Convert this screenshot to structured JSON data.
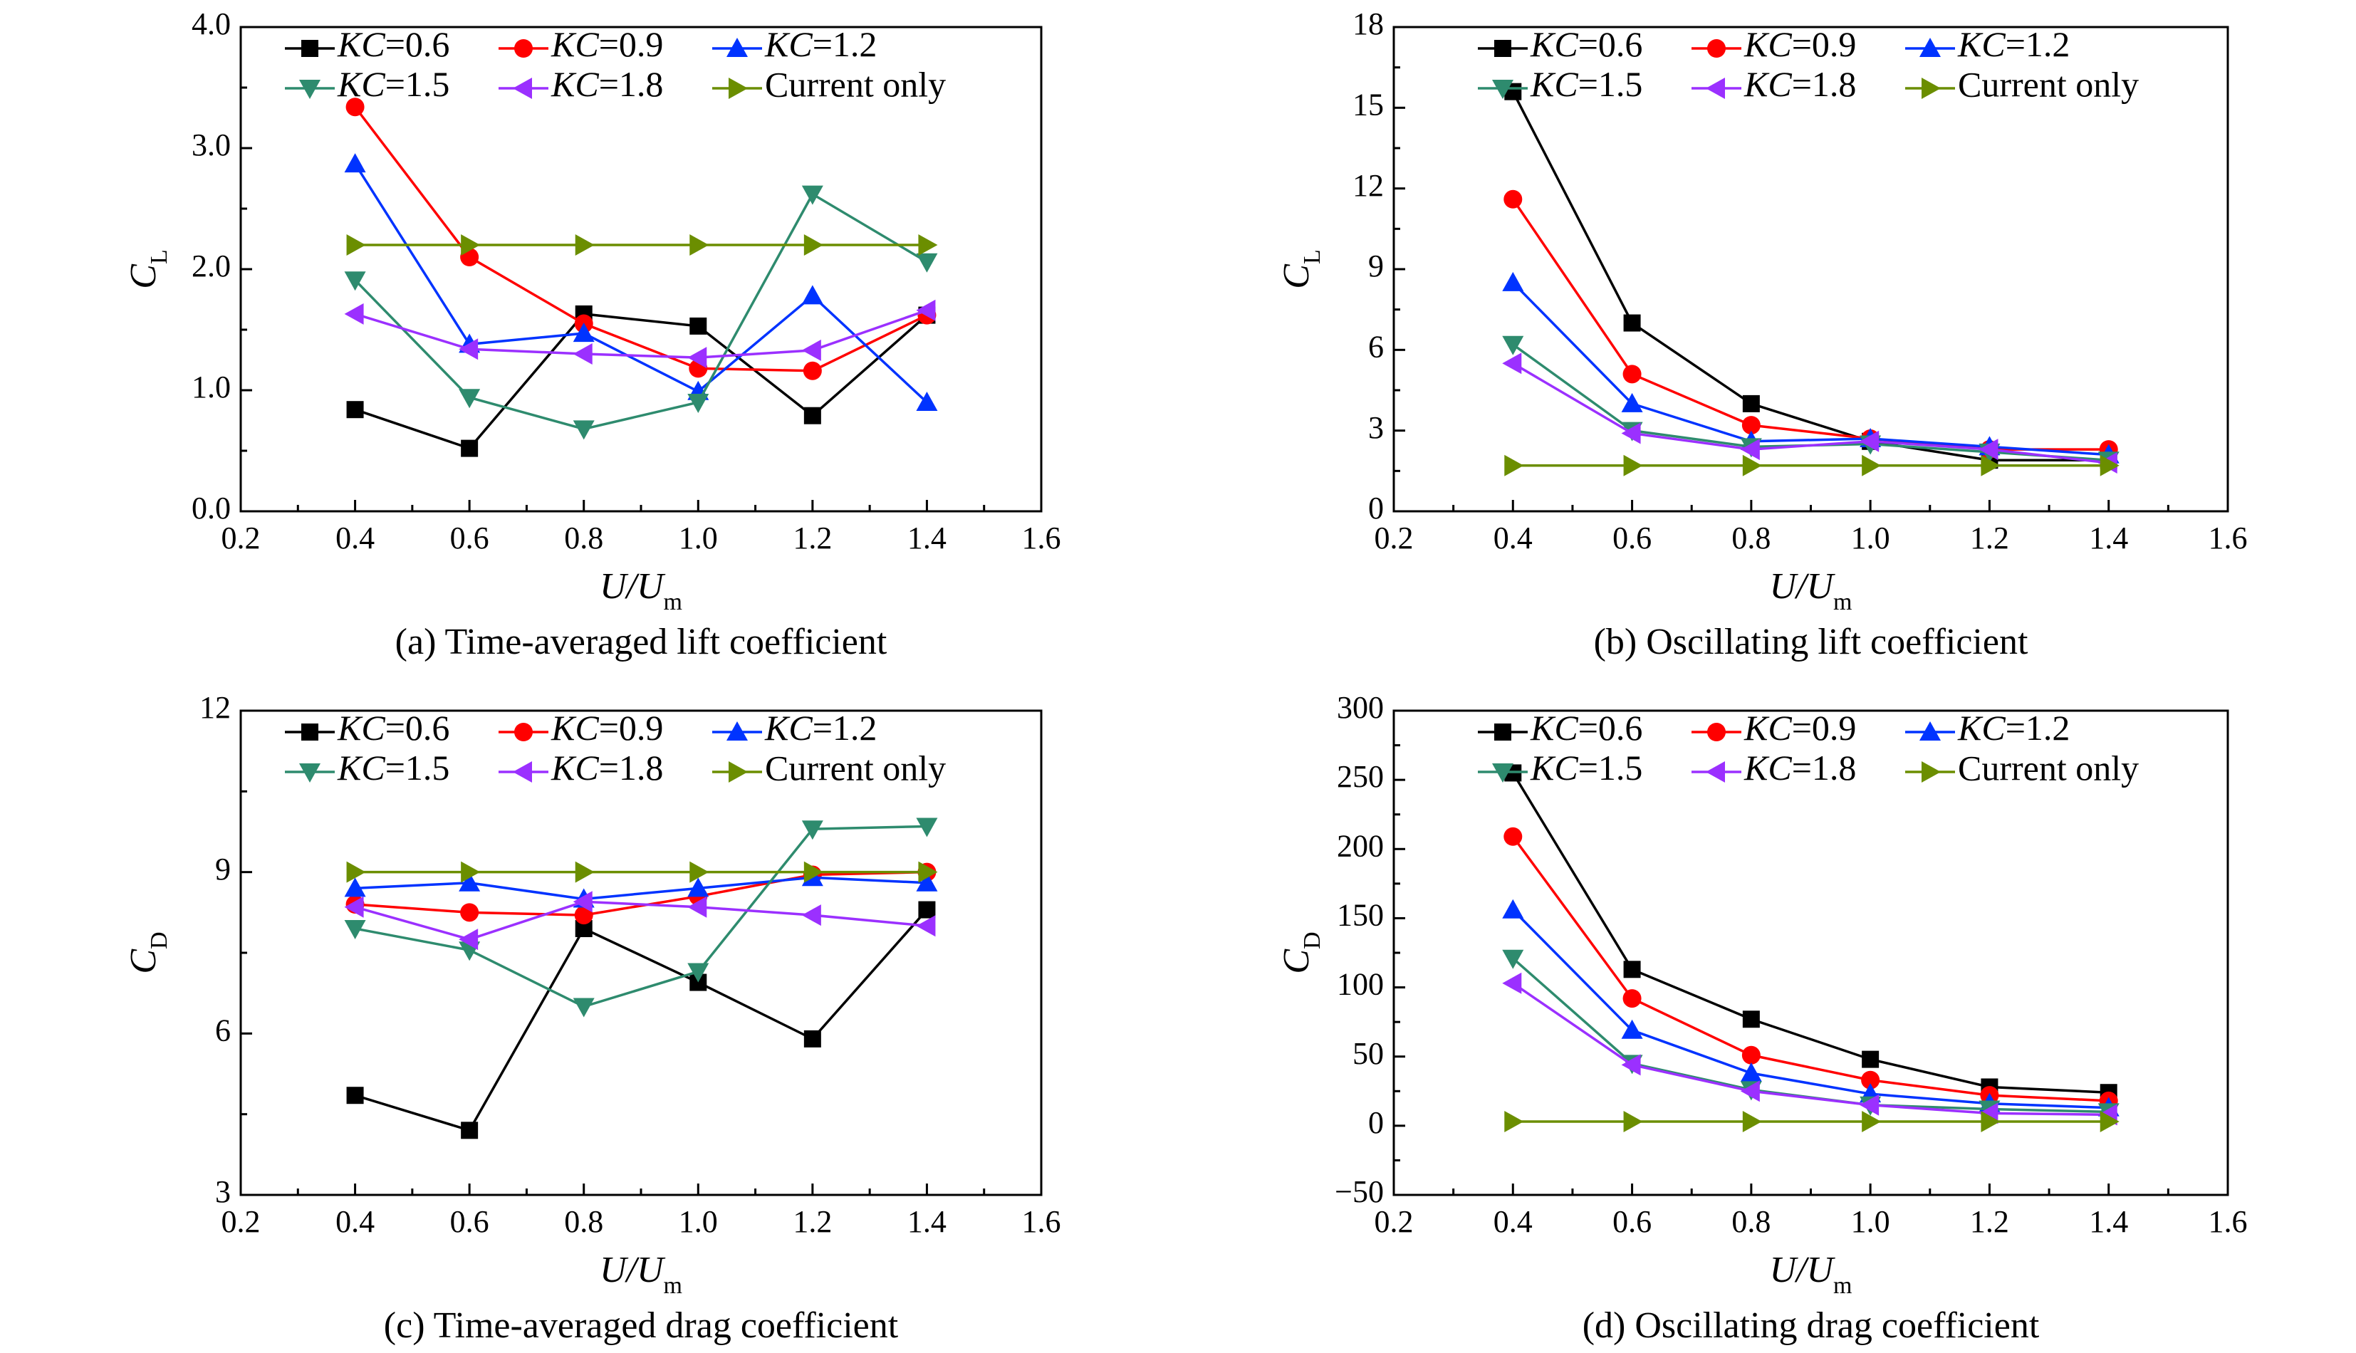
{
  "chart_data": [
    {
      "id": "a",
      "type": "line",
      "caption": "(a) Time-averaged lift coefficient",
      "xlabel": "U/U",
      "xlabel_sub": "m",
      "ylabel": "C",
      "ylabel_sub": "L",
      "xlim": [
        0.2,
        1.6
      ],
      "ylim": [
        0.0,
        4.0
      ],
      "xticks": [
        0.2,
        0.4,
        0.6,
        0.8,
        1.0,
        1.2,
        1.4,
        1.6
      ],
      "xtick_labels": [
        "0.2",
        "0.4",
        "0.6",
        "0.8",
        "1.0",
        "1.2",
        "1.4",
        "1.6"
      ],
      "yticks": [
        0.0,
        1.0,
        2.0,
        3.0,
        4.0
      ],
      "ytick_labels": [
        "0.0",
        "1.0",
        "2.0",
        "3.0",
        "4.0"
      ],
      "x": [
        0.4,
        0.6,
        0.8,
        1.0,
        1.2,
        1.4
      ],
      "series": [
        {
          "name": "KC=0.6",
          "values": [
            0.84,
            0.52,
            1.63,
            1.53,
            0.79,
            1.62
          ]
        },
        {
          "name": "KC=0.9",
          "values": [
            3.34,
            2.1,
            1.55,
            1.18,
            1.16,
            1.62
          ]
        },
        {
          "name": "KC=1.2",
          "values": [
            2.87,
            1.38,
            1.47,
            0.99,
            1.78,
            0.9
          ]
        },
        {
          "name": "KC=1.5",
          "values": [
            1.91,
            0.94,
            0.68,
            0.9,
            2.62,
            2.06
          ]
        },
        {
          "name": "KC=1.8",
          "values": [
            1.63,
            1.34,
            1.3,
            1.27,
            1.33,
            1.66
          ]
        },
        {
          "name": "Current only",
          "values": [
            2.2,
            2.2,
            2.2,
            2.2,
            2.2,
            2.2
          ]
        }
      ]
    },
    {
      "id": "b",
      "type": "line",
      "caption": "(b) Oscillating lift coefficient",
      "xlabel": "U/U",
      "xlabel_sub": "m",
      "ylabel": "C",
      "ylabel_sub": "L",
      "xlim": [
        0.2,
        1.6
      ],
      "ylim": [
        0,
        18
      ],
      "xticks": [
        0.2,
        0.4,
        0.6,
        0.8,
        1.0,
        1.2,
        1.4,
        1.6
      ],
      "xtick_labels": [
        "0.2",
        "0.4",
        "0.6",
        "0.8",
        "1.0",
        "1.2",
        "1.4",
        "1.6"
      ],
      "yticks": [
        0,
        3,
        6,
        9,
        12,
        15,
        18
      ],
      "ytick_labels": [
        "0",
        "3",
        "6",
        "9",
        "12",
        "15",
        "18"
      ],
      "x": [
        0.4,
        0.6,
        0.8,
        1.0,
        1.2,
        1.4
      ],
      "series": [
        {
          "name": "KC=0.6",
          "values": [
            15.6,
            7.0,
            4.0,
            2.6,
            1.9,
            1.9
          ]
        },
        {
          "name": "KC=0.9",
          "values": [
            11.6,
            5.1,
            3.2,
            2.7,
            2.3,
            2.3
          ]
        },
        {
          "name": "KC=1.2",
          "values": [
            8.5,
            4.0,
            2.6,
            2.7,
            2.4,
            2.1
          ]
        },
        {
          "name": "KC=1.5",
          "values": [
            6.2,
            3.0,
            2.4,
            2.5,
            2.2,
            1.9
          ]
        },
        {
          "name": "KC=1.8",
          "values": [
            5.5,
            2.9,
            2.3,
            2.6,
            2.3,
            1.8
          ]
        },
        {
          "name": "Current only",
          "values": [
            1.7,
            1.7,
            1.7,
            1.7,
            1.7,
            1.7
          ]
        }
      ]
    },
    {
      "id": "c",
      "type": "line",
      "caption": "(c) Time-averaged drag coefficient",
      "xlabel": "U/U",
      "xlabel_sub": "m",
      "ylabel": "C",
      "ylabel_sub": "D",
      "xlim": [
        0.2,
        1.6
      ],
      "ylim": [
        3,
        12
      ],
      "xticks": [
        0.2,
        0.4,
        0.6,
        0.8,
        1.0,
        1.2,
        1.4,
        1.6
      ],
      "xtick_labels": [
        "0.2",
        "0.4",
        "0.6",
        "0.8",
        "1.0",
        "1.2",
        "1.4",
        "1.6"
      ],
      "yticks": [
        3,
        6,
        9,
        12
      ],
      "ytick_labels": [
        "3",
        "6",
        "9",
        "12"
      ],
      "x": [
        0.4,
        0.6,
        0.8,
        1.0,
        1.2,
        1.4
      ],
      "series": [
        {
          "name": "KC=0.6",
          "values": [
            4.85,
            4.2,
            7.95,
            6.95,
            5.9,
            8.3
          ]
        },
        {
          "name": "KC=0.9",
          "values": [
            8.4,
            8.25,
            8.2,
            8.55,
            8.95,
            9.0
          ]
        },
        {
          "name": "KC=1.2",
          "values": [
            8.7,
            8.8,
            8.5,
            8.7,
            8.9,
            8.8
          ]
        },
        {
          "name": "KC=1.5",
          "values": [
            7.95,
            7.55,
            6.5,
            7.15,
            9.8,
            9.85
          ]
        },
        {
          "name": "KC=1.8",
          "values": [
            8.35,
            7.75,
            8.45,
            8.35,
            8.2,
            8.0
          ]
        },
        {
          "name": "Current only",
          "values": [
            9.0,
            9.0,
            9.0,
            9.0,
            9.0,
            9.0
          ]
        }
      ]
    },
    {
      "id": "d",
      "type": "line",
      "caption": "(d) Oscillating drag coefficient",
      "xlabel": "U/U",
      "xlabel_sub": "m",
      "ylabel": "C",
      "ylabel_sub": "D",
      "xlim": [
        0.2,
        1.6
      ],
      "ylim": [
        -50,
        300
      ],
      "xticks": [
        0.2,
        0.4,
        0.6,
        0.8,
        1.0,
        1.2,
        1.4,
        1.6
      ],
      "xtick_labels": [
        "0.2",
        "0.4",
        "0.6",
        "0.8",
        "1.0",
        "1.2",
        "1.4",
        "1.6"
      ],
      "yticks": [
        -50,
        0,
        50,
        100,
        150,
        200,
        250,
        300
      ],
      "ytick_labels": [
        "−50",
        "0",
        "50",
        "100",
        "150",
        "200",
        "250",
        "300"
      ],
      "x": [
        0.4,
        0.6,
        0.8,
        1.0,
        1.2,
        1.4
      ],
      "series": [
        {
          "name": "KC=0.6",
          "values": [
            255,
            113,
            77,
            48,
            28,
            24
          ]
        },
        {
          "name": "KC=0.9",
          "values": [
            209,
            92,
            51,
            33,
            22,
            18
          ]
        },
        {
          "name": "KC=1.2",
          "values": [
            156,
            69,
            38,
            23,
            16,
            13
          ]
        },
        {
          "name": "KC=1.5",
          "values": [
            121,
            45,
            26,
            15,
            12,
            10
          ]
        },
        {
          "name": "KC=1.8",
          "values": [
            103,
            44,
            25,
            15,
            9,
            8
          ]
        },
        {
          "name": "Current only",
          "values": [
            3,
            3,
            3,
            3,
            3,
            3
          ]
        }
      ]
    }
  ],
  "series_style": [
    {
      "color": "#000000",
      "marker": "square"
    },
    {
      "color": "#ff0000",
      "marker": "circle"
    },
    {
      "color": "#0033ff",
      "marker": "triangle-up"
    },
    {
      "color": "#2e8b6e",
      "marker": "triangle-down"
    },
    {
      "color": "#9b30ff",
      "marker": "triangle-left"
    },
    {
      "color": "#6b8e00",
      "marker": "triangle-right"
    }
  ]
}
